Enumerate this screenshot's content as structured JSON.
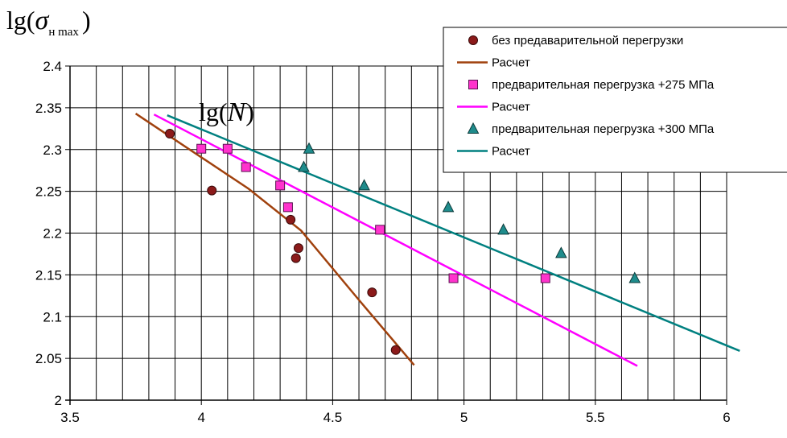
{
  "chart_data": {
    "type": "scatter",
    "x_axis_title": {
      "base": "lg(",
      "var": "N",
      "close": ")"
    },
    "y_axis_title": {
      "base": "lg(",
      "sigma": "σ",
      "sub": "н max",
      "close": ")"
    },
    "xlim": [
      3.5,
      6.0
    ],
    "ylim": [
      2.0,
      2.4
    ],
    "x_ticks": [
      "3.5",
      "4",
      "4.5",
      "5",
      "5.5",
      "6"
    ],
    "y_ticks": [
      "2",
      "2.05",
      "2.1",
      "2.15",
      "2.2",
      "2.25",
      "2.3",
      "2.35",
      "2.4"
    ],
    "grid": true,
    "legend_position": "top-right",
    "series": [
      {
        "name": "без предаварительной перегрузки",
        "kind": "points",
        "marker": "circle",
        "color": "#8B1A1A",
        "points": [
          [
            3.88,
            2.319
          ],
          [
            4.04,
            2.251
          ],
          [
            4.34,
            2.216
          ],
          [
            4.37,
            2.182
          ],
          [
            4.36,
            2.17
          ],
          [
            4.65,
            2.129
          ],
          [
            4.74,
            2.06
          ]
        ]
      },
      {
        "name": "Расчет",
        "kind": "line",
        "color": "#A0410D",
        "points": [
          [
            3.75,
            2.343
          ],
          [
            4.18,
            2.253
          ],
          [
            4.38,
            2.203
          ],
          [
            4.6,
            2.12
          ],
          [
            4.81,
            2.042
          ]
        ]
      },
      {
        "name": "предварительная перегрузка +275 МПа",
        "kind": "points",
        "marker": "square",
        "color": "#FF33CC",
        "points": [
          [
            4.0,
            2.301
          ],
          [
            4.1,
            2.301
          ],
          [
            4.17,
            2.279
          ],
          [
            4.3,
            2.257
          ],
          [
            4.33,
            2.231
          ],
          [
            4.68,
            2.204
          ],
          [
            4.96,
            2.146
          ],
          [
            5.31,
            2.146
          ]
        ]
      },
      {
        "name": "Расчет",
        "kind": "line",
        "color": "#FF00FF",
        "points": [
          [
            3.82,
            2.342
          ],
          [
            5.66,
            2.041
          ]
        ]
      },
      {
        "name": "предварительная перегрузка +300 МПа",
        "kind": "points",
        "marker": "triangle",
        "color": "#1F8C8C",
        "points": [
          [
            4.41,
            2.301
          ],
          [
            4.39,
            2.279
          ],
          [
            4.62,
            2.257
          ],
          [
            4.94,
            2.231
          ],
          [
            5.15,
            2.204
          ],
          [
            5.37,
            2.176
          ],
          [
            5.65,
            2.146
          ]
        ]
      },
      {
        "name": "Расчет",
        "kind": "line",
        "color": "#008080",
        "points": [
          [
            3.87,
            2.341
          ],
          [
            6.05,
            2.059
          ]
        ]
      }
    ]
  }
}
